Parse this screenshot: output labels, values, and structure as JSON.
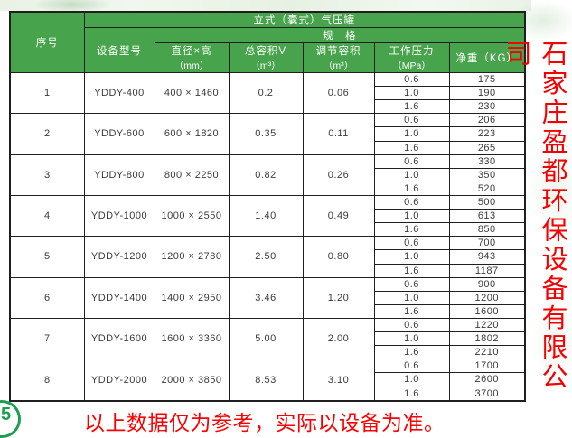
{
  "title": "立式（囊式）气压罐",
  "spec_label": "规　格",
  "columns": {
    "serial": "序号",
    "model": "设备型号",
    "size": "直径×高",
    "size_unit": "（mm）",
    "total_volume": "总容积V",
    "total_volume_unit": "（m³）",
    "adjust_volume": "调节容积",
    "adjust_volume_unit": "（m³）",
    "pressure": "工作压力",
    "pressure_unit": "（MPa）",
    "weight": "净重（KG）"
  },
  "rows": [
    {
      "serial": "1",
      "model": "YDDY-400",
      "size": "400 × 1460",
      "total_volume": "0.2",
      "adjust_volume": "0.06",
      "pressures": [
        "0.6",
        "1.0",
        "1.6"
      ],
      "weights": [
        "175",
        "190",
        "230"
      ]
    },
    {
      "serial": "2",
      "model": "YDDY-600",
      "size": "600 × 1820",
      "total_volume": "0.35",
      "adjust_volume": "0.11",
      "pressures": [
        "0.6",
        "1.0",
        "1.6"
      ],
      "weights": [
        "206",
        "223",
        "265"
      ]
    },
    {
      "serial": "3",
      "model": "YDDY-800",
      "size": "800 × 2250",
      "total_volume": "0.82",
      "adjust_volume": "0.26",
      "pressures": [
        "0.6",
        "1.0",
        "1.6"
      ],
      "weights": [
        "330",
        "350",
        "520"
      ]
    },
    {
      "serial": "4",
      "model": "YDDY-1000",
      "size": "1000 × 2550",
      "total_volume": "1.40",
      "adjust_volume": "0.49",
      "pressures": [
        "0.6",
        "1.0",
        "1.6"
      ],
      "weights": [
        "500",
        "613",
        "850"
      ]
    },
    {
      "serial": "5",
      "model": "YDDY-1200",
      "size": "1200 × 2780",
      "total_volume": "2.50",
      "adjust_volume": "0.80",
      "pressures": [
        "0.6",
        "1.0",
        "1.6"
      ],
      "weights": [
        "700",
        "943",
        "1187"
      ]
    },
    {
      "serial": "6",
      "model": "YDDY-1400",
      "size": "1400 × 2950",
      "total_volume": "3.46",
      "adjust_volume": "1.20",
      "pressures": [
        "0.6",
        "1.0",
        "1.6"
      ],
      "weights": [
        "900",
        "1200",
        "1600"
      ]
    },
    {
      "serial": "7",
      "model": "YDDY-1600",
      "size": "1600 × 3360",
      "total_volume": "5.00",
      "adjust_volume": "2.00",
      "pressures": [
        "0.6",
        "1.0",
        "1.6"
      ],
      "weights": [
        "1220",
        "1802",
        "2210"
      ]
    },
    {
      "serial": "8",
      "model": "YDDY-2000",
      "size": "2000 × 3850",
      "total_volume": "8.53",
      "adjust_volume": "3.10",
      "pressures": [
        "0.6",
        "1.0",
        "1.6"
      ],
      "weights": [
        "1700",
        "2600",
        "3700"
      ]
    }
  ],
  "footer": {
    "disclaimer": "以上数据仅为参考，实际以设备为准。"
  },
  "sidebar": {
    "company_name": "石家庄盈都环保设备有限公司"
  },
  "logo": {
    "visible_text": "5"
  },
  "colors": {
    "header_green": "#48a44c",
    "accent_red": "#f40000",
    "border": "#1f1f1f"
  }
}
